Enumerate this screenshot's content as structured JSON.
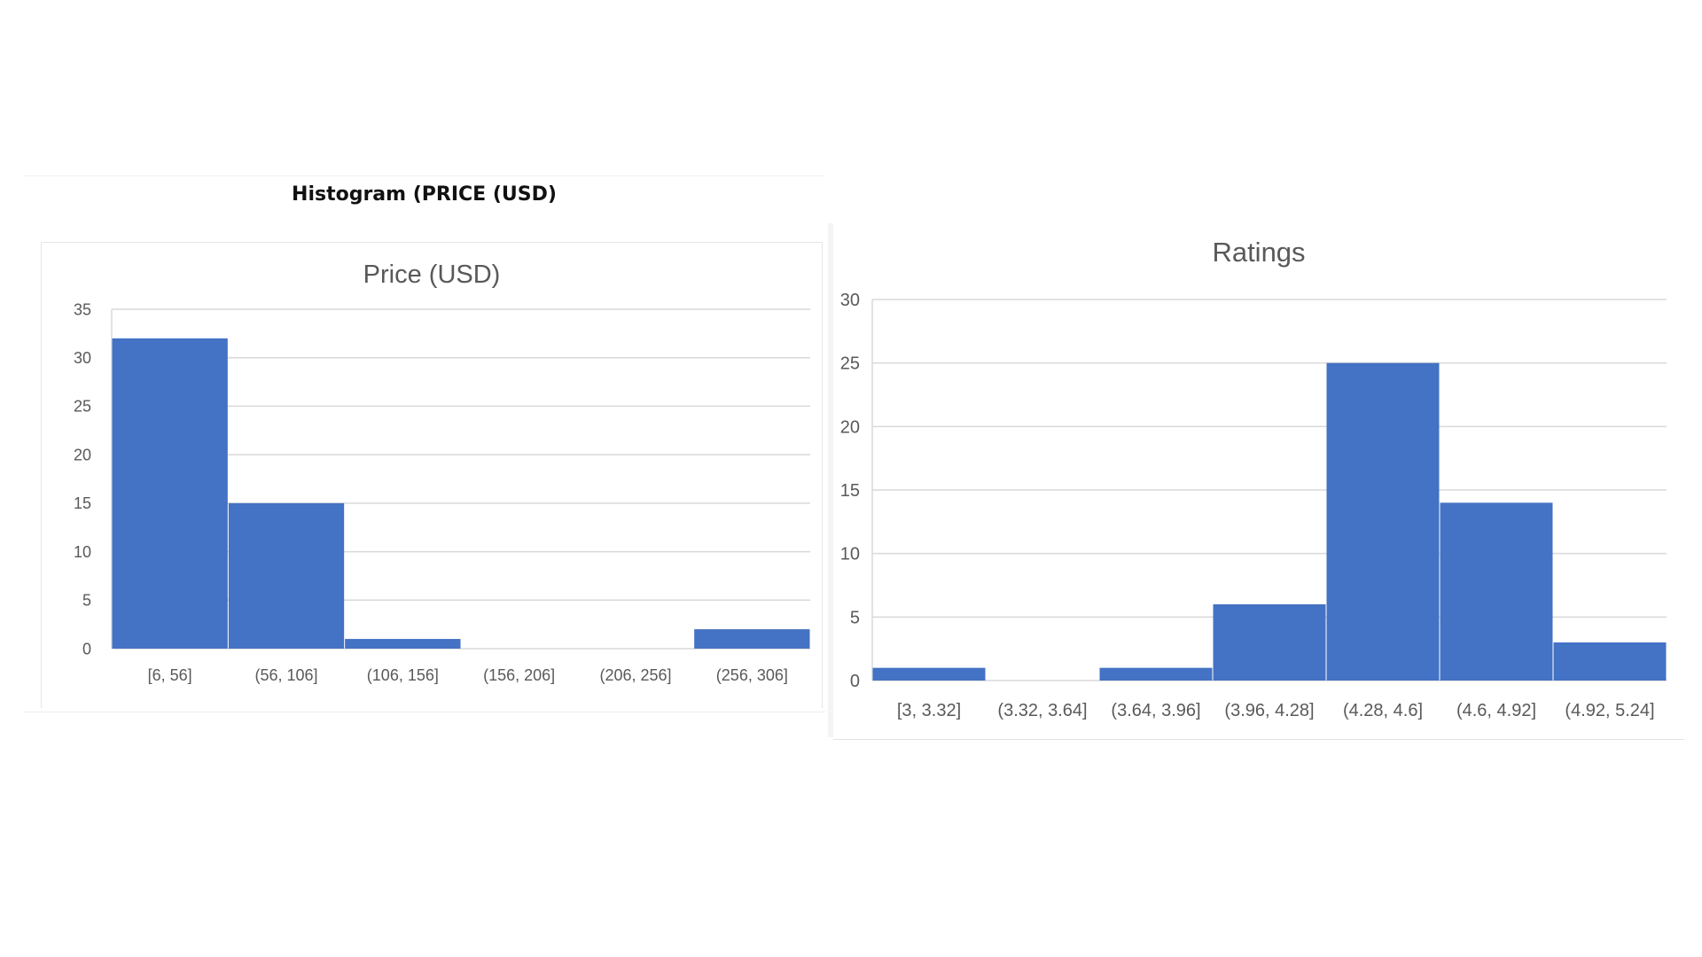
{
  "header": {
    "title": "Histogram (PRICE (USD)"
  },
  "colors": {
    "bar": "#4472C4",
    "grid": "#d9d9d9",
    "tick_text": "#595959",
    "title_text": "#595959"
  },
  "chart_data": [
    {
      "type": "bar",
      "title": "Price (USD)",
      "xlabel": "",
      "ylabel": "",
      "categories": [
        "[6, 56]",
        "(56, 106]",
        "(106, 156]",
        "(156, 206]",
        "(206, 256]",
        "(256, 306]"
      ],
      "values": [
        32,
        15,
        1,
        0,
        0,
        2
      ],
      "ylim": [
        0,
        35
      ],
      "yticks": [
        "0",
        "5",
        "10",
        "15",
        "20",
        "25",
        "30",
        "35"
      ],
      "grid": true,
      "legend": "none"
    },
    {
      "type": "bar",
      "title": "Ratings",
      "xlabel": "",
      "ylabel": "",
      "categories": [
        "[3, 3.32]",
        "(3.32, 3.64]",
        "(3.64, 3.96]",
        "(3.96, 4.28]",
        "(4.28, 4.6]",
        "(4.6, 4.92]",
        "(4.92, 5.24]"
      ],
      "values": [
        1,
        0,
        1,
        6,
        25,
        14,
        3
      ],
      "ylim": [
        0,
        30
      ],
      "yticks": [
        "0",
        "5",
        "10",
        "15",
        "20",
        "25",
        "30"
      ],
      "grid": true,
      "legend": "none"
    }
  ]
}
